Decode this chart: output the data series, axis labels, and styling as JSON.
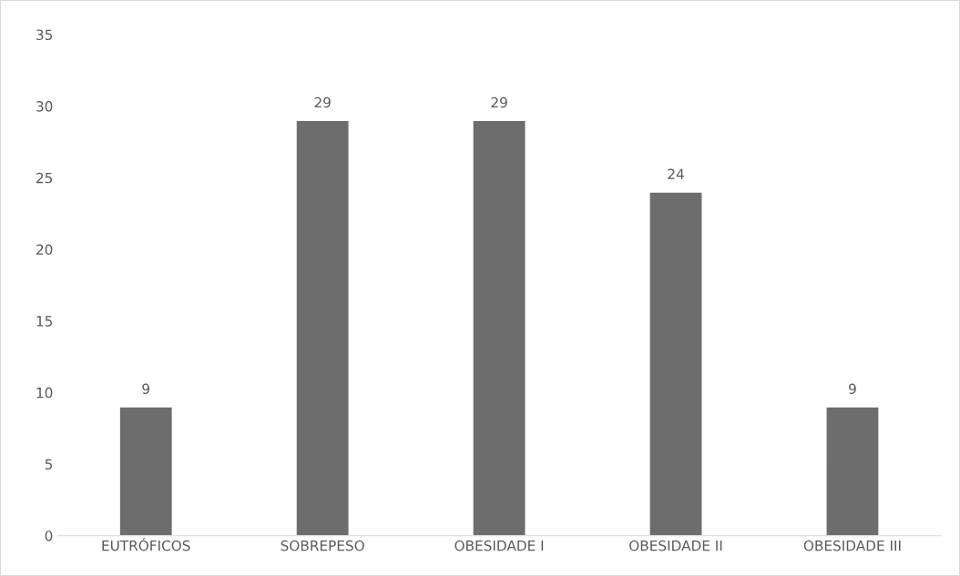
{
  "chart_data": {
    "type": "bar",
    "categories": [
      "EUTRÓFICOS",
      "SOBREPESO",
      "OBESIDADE I",
      "OBESIDADE II",
      "OBESIDADE III"
    ],
    "values": [
      9,
      29,
      29,
      24,
      9
    ],
    "color": "#6d6d6d",
    "ylim": [
      0,
      35
    ],
    "yticks": [
      0,
      5,
      10,
      15,
      20,
      25,
      30,
      35
    ],
    "data_labels": true,
    "grid": false,
    "legend": false
  }
}
